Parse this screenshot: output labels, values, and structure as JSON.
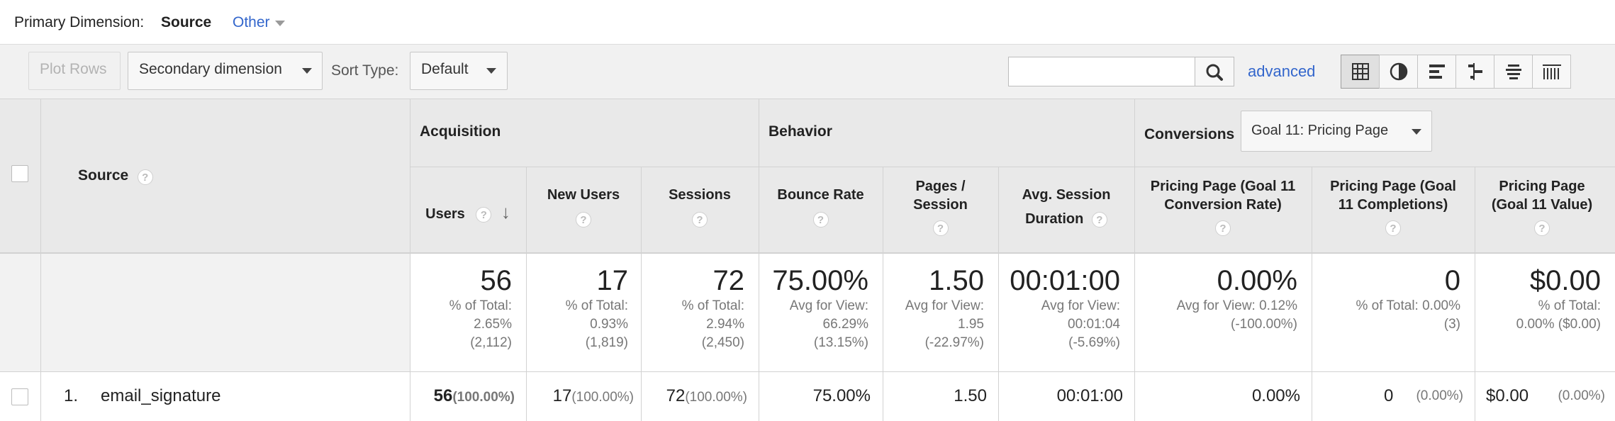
{
  "primary_dimension": {
    "label": "Primary Dimension:",
    "selected": "Source",
    "other": "Other"
  },
  "toolbar": {
    "plot_rows": "Plot Rows",
    "secondary_dimension": "Secondary dimension",
    "sort_type_label": "Sort Type:",
    "sort_type_value": "Default",
    "search_value": "",
    "advanced": "advanced",
    "view_icons": [
      "table-view-icon",
      "pie-view-icon",
      "performance-view-icon",
      "comparison-view-icon",
      "term-cloud-view-icon",
      "pivot-view-icon"
    ],
    "active_view": "table-view-icon"
  },
  "table": {
    "dimension_header": "Source",
    "groups": {
      "acquisition": "Acquisition",
      "behavior": "Behavior",
      "conversions": "Conversions",
      "goal_select": "Goal 11: Pricing Page"
    },
    "columns": [
      {
        "line1": "Users",
        "line2": ""
      },
      {
        "line1": "New Users",
        "line2": ""
      },
      {
        "line1": "Sessions",
        "line2": ""
      },
      {
        "line1": "Bounce Rate",
        "line2": ""
      },
      {
        "line1": "Pages /",
        "line2": "Session"
      },
      {
        "line1": "Avg. Session",
        "line2": "Duration"
      },
      {
        "line1": "Pricing Page (Goal 11",
        "line2": "Conversion Rate)"
      },
      {
        "line1": "Pricing Page (Goal",
        "line2": "11 Completions)"
      },
      {
        "line1": "Pricing Page",
        "line2": "(Goal 11 Value)"
      }
    ],
    "help_glyph": "?",
    "sort_arrow": "↓",
    "totals": [
      {
        "value": "56",
        "l1": "% of Total:",
        "l2": "2.65%",
        "l3": "(2,112)"
      },
      {
        "value": "17",
        "l1": "% of Total:",
        "l2": "0.93%",
        "l3": "(1,819)"
      },
      {
        "value": "72",
        "l1": "% of Total:",
        "l2": "2.94%",
        "l3": "(2,450)"
      },
      {
        "value": "75.00%",
        "l1": "Avg for View:",
        "l2": "66.29%",
        "l3": "(13.15%)"
      },
      {
        "value": "1.50",
        "l1": "Avg for View:",
        "l2": "1.95",
        "l3": "(-22.97%)"
      },
      {
        "value": "00:01:00",
        "l1": "Avg for View:",
        "l2": "00:01:04",
        "l3": "(-5.69%)"
      },
      {
        "value": "0.00%",
        "l1": "Avg for View: 0.12%",
        "l2": "(-100.00%)",
        "l3": ""
      },
      {
        "value": "0",
        "l1": "% of Total: 0.00%",
        "l2": "(3)",
        "l3": ""
      },
      {
        "value": "$0.00",
        "l1": "% of Total:",
        "l2": "0.00% ($0.00)",
        "l3": ""
      }
    ],
    "rows": [
      {
        "index": "1.",
        "source": "email_signature",
        "cells": [
          {
            "value": "56",
            "pct": "(100.00%)"
          },
          {
            "value": "17",
            "pct": "(100.00%)"
          },
          {
            "value": "72",
            "pct": "(100.00%)"
          },
          {
            "value": "75.00%",
            "pct": ""
          },
          {
            "value": "1.50",
            "pct": ""
          },
          {
            "value": "00:01:00",
            "pct": ""
          },
          {
            "value": "0.00%",
            "pct": ""
          },
          {
            "value": "0",
            "pct": "(0.00%)"
          },
          {
            "value": "$0.00",
            "pct": "(0.00%)"
          }
        ]
      }
    ]
  }
}
